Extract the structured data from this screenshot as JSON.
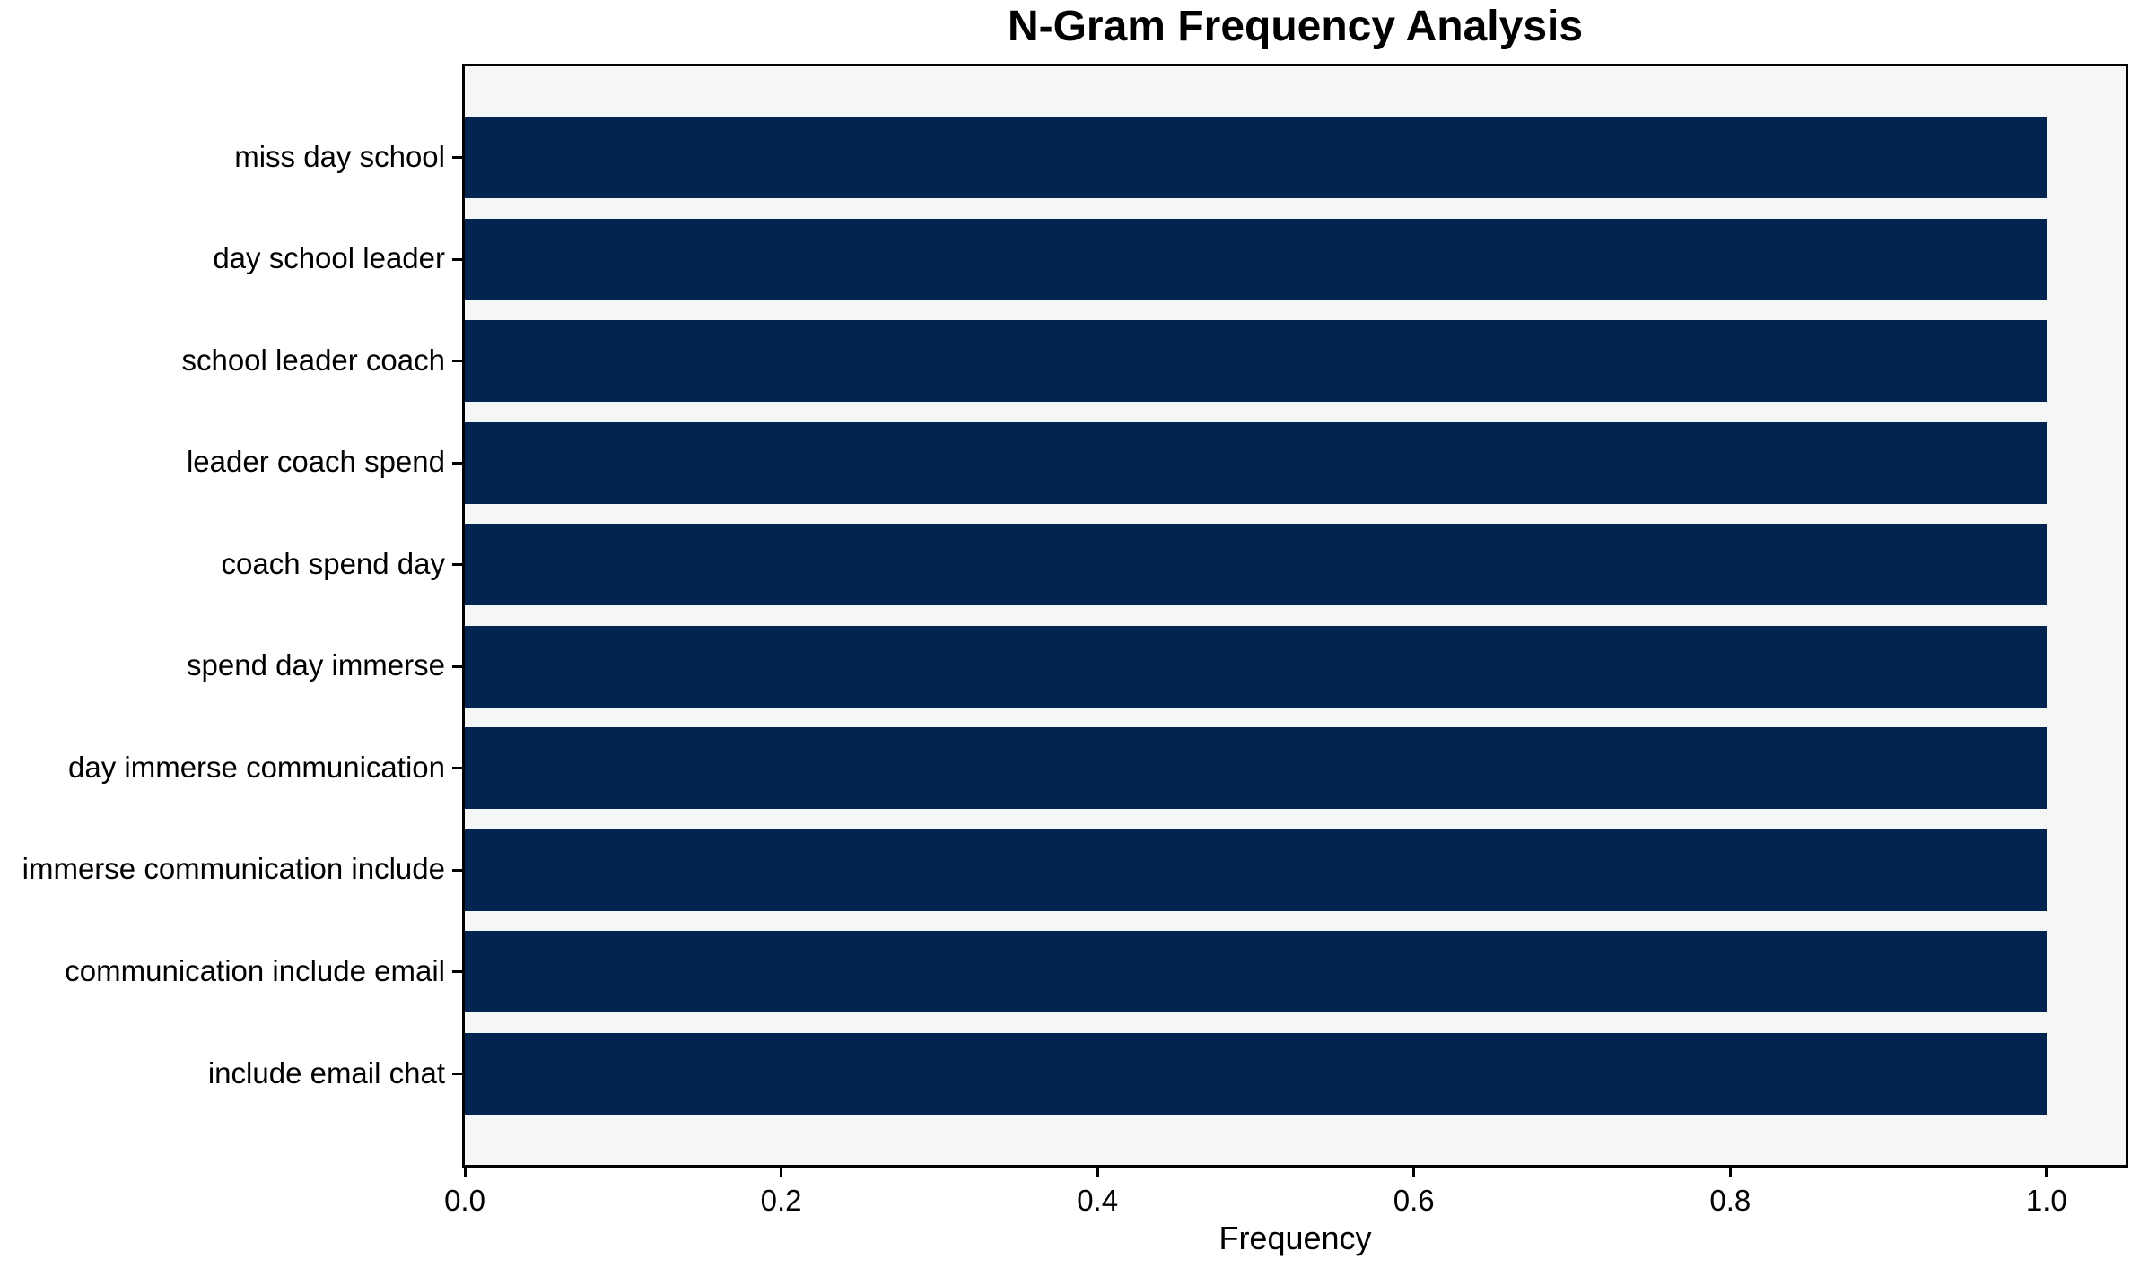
{
  "chart_data": {
    "type": "bar",
    "orientation": "horizontal",
    "title": "N-Gram Frequency Analysis",
    "xlabel": "Frequency",
    "ylabel": "",
    "categories": [
      "miss day school",
      "day school leader",
      "school leader coach",
      "leader coach spend",
      "coach spend day",
      "spend day immerse",
      "day immerse communication",
      "immerse communication include",
      "communication include email",
      "include email chat"
    ],
    "values": [
      1.0,
      1.0,
      1.0,
      1.0,
      1.0,
      1.0,
      1.0,
      1.0,
      1.0,
      1.0
    ],
    "xtick_labels": [
      "0.0",
      "0.2",
      "0.4",
      "0.6",
      "0.8",
      "1.0"
    ],
    "xtick_values": [
      0.0,
      0.2,
      0.4,
      0.6,
      0.8,
      1.0
    ],
    "xlim": [
      0,
      1.05
    ],
    "grid": false,
    "legend": "none",
    "colors": {
      "bar": "#02244e",
      "plot_background": "#f5f6f6",
      "figure_background": "#ffffff",
      "axis": "#000000",
      "text": "#000000"
    }
  }
}
